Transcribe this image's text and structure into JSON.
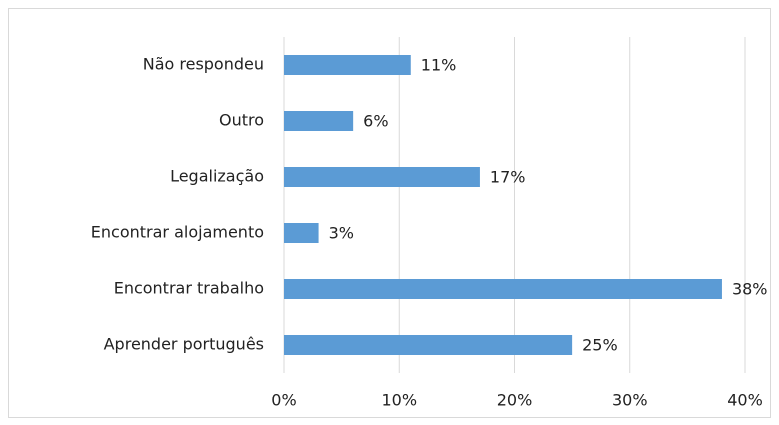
{
  "chart_data": {
    "type": "bar",
    "orientation": "horizontal",
    "categories": [
      "Não respondeu",
      "Outro",
      "Legalização",
      "Encontrar alojamento",
      "Encontrar trabalho",
      "Aprender português"
    ],
    "values": [
      11,
      6,
      17,
      3,
      38,
      25
    ],
    "value_labels": [
      "11%",
      "6%",
      "17%",
      "3%",
      "38%",
      "25%"
    ],
    "color": "#5b9bd5",
    "xlim": [
      0,
      40
    ],
    "xticks": [
      {
        "value": 0,
        "label": "0%"
      },
      {
        "value": 10,
        "label": "10%"
      },
      {
        "value": 20,
        "label": "20%"
      },
      {
        "value": 30,
        "label": "30%"
      },
      {
        "value": 40,
        "label": "40%"
      }
    ],
    "grid": true
  }
}
